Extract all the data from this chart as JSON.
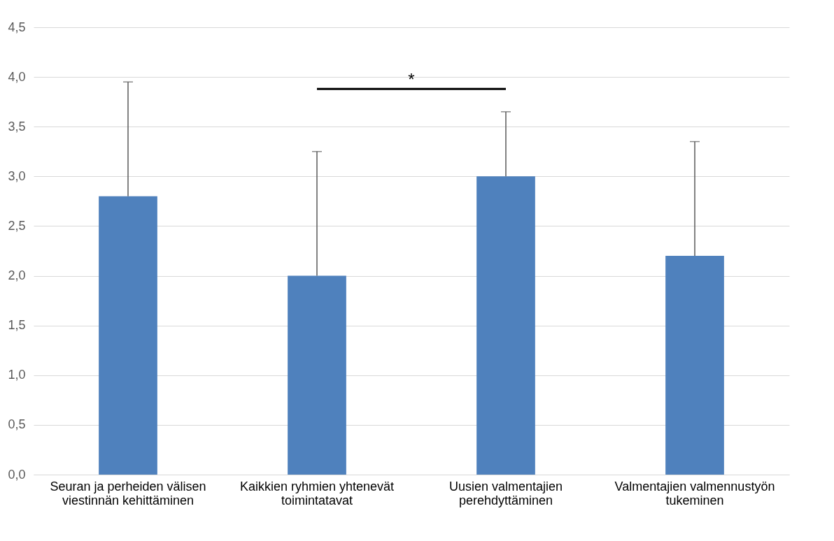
{
  "chart_data": {
    "type": "bar",
    "categories": [
      "Seuran ja perheiden välisen viestinnän kehittäminen",
      "Kaikkien ryhmien yhtenevät toimintatavat",
      "Uusien valmentajien perehdyttäminen",
      "Valmentajien valmennustyön tukeminen"
    ],
    "values": [
      2.8,
      2.0,
      3.0,
      2.2
    ],
    "errors": [
      [
        2.8,
        3.95
      ],
      [
        2.0,
        3.25
      ],
      [
        3.0,
        3.65
      ],
      [
        2.2,
        3.35
      ]
    ],
    "color": "#4f81bd",
    "ylim": [
      0,
      4.5
    ],
    "yticks": [
      {
        "value": 0,
        "label": "0,0"
      },
      {
        "value": 0.5,
        "label": "0,5"
      },
      {
        "value": 1,
        "label": "1,0"
      },
      {
        "value": 1.5,
        "label": "1,5"
      },
      {
        "value": 2,
        "label": "2,0"
      },
      {
        "value": 2.5,
        "label": "2,5"
      },
      {
        "value": 3,
        "label": "3,0"
      },
      {
        "value": 3.5,
        "label": "3,5"
      },
      {
        "value": 4,
        "label": "4,0"
      },
      {
        "value": 4.5,
        "label": "4,5"
      }
    ],
    "grid": "y",
    "annotations": [
      "*"
    ]
  }
}
